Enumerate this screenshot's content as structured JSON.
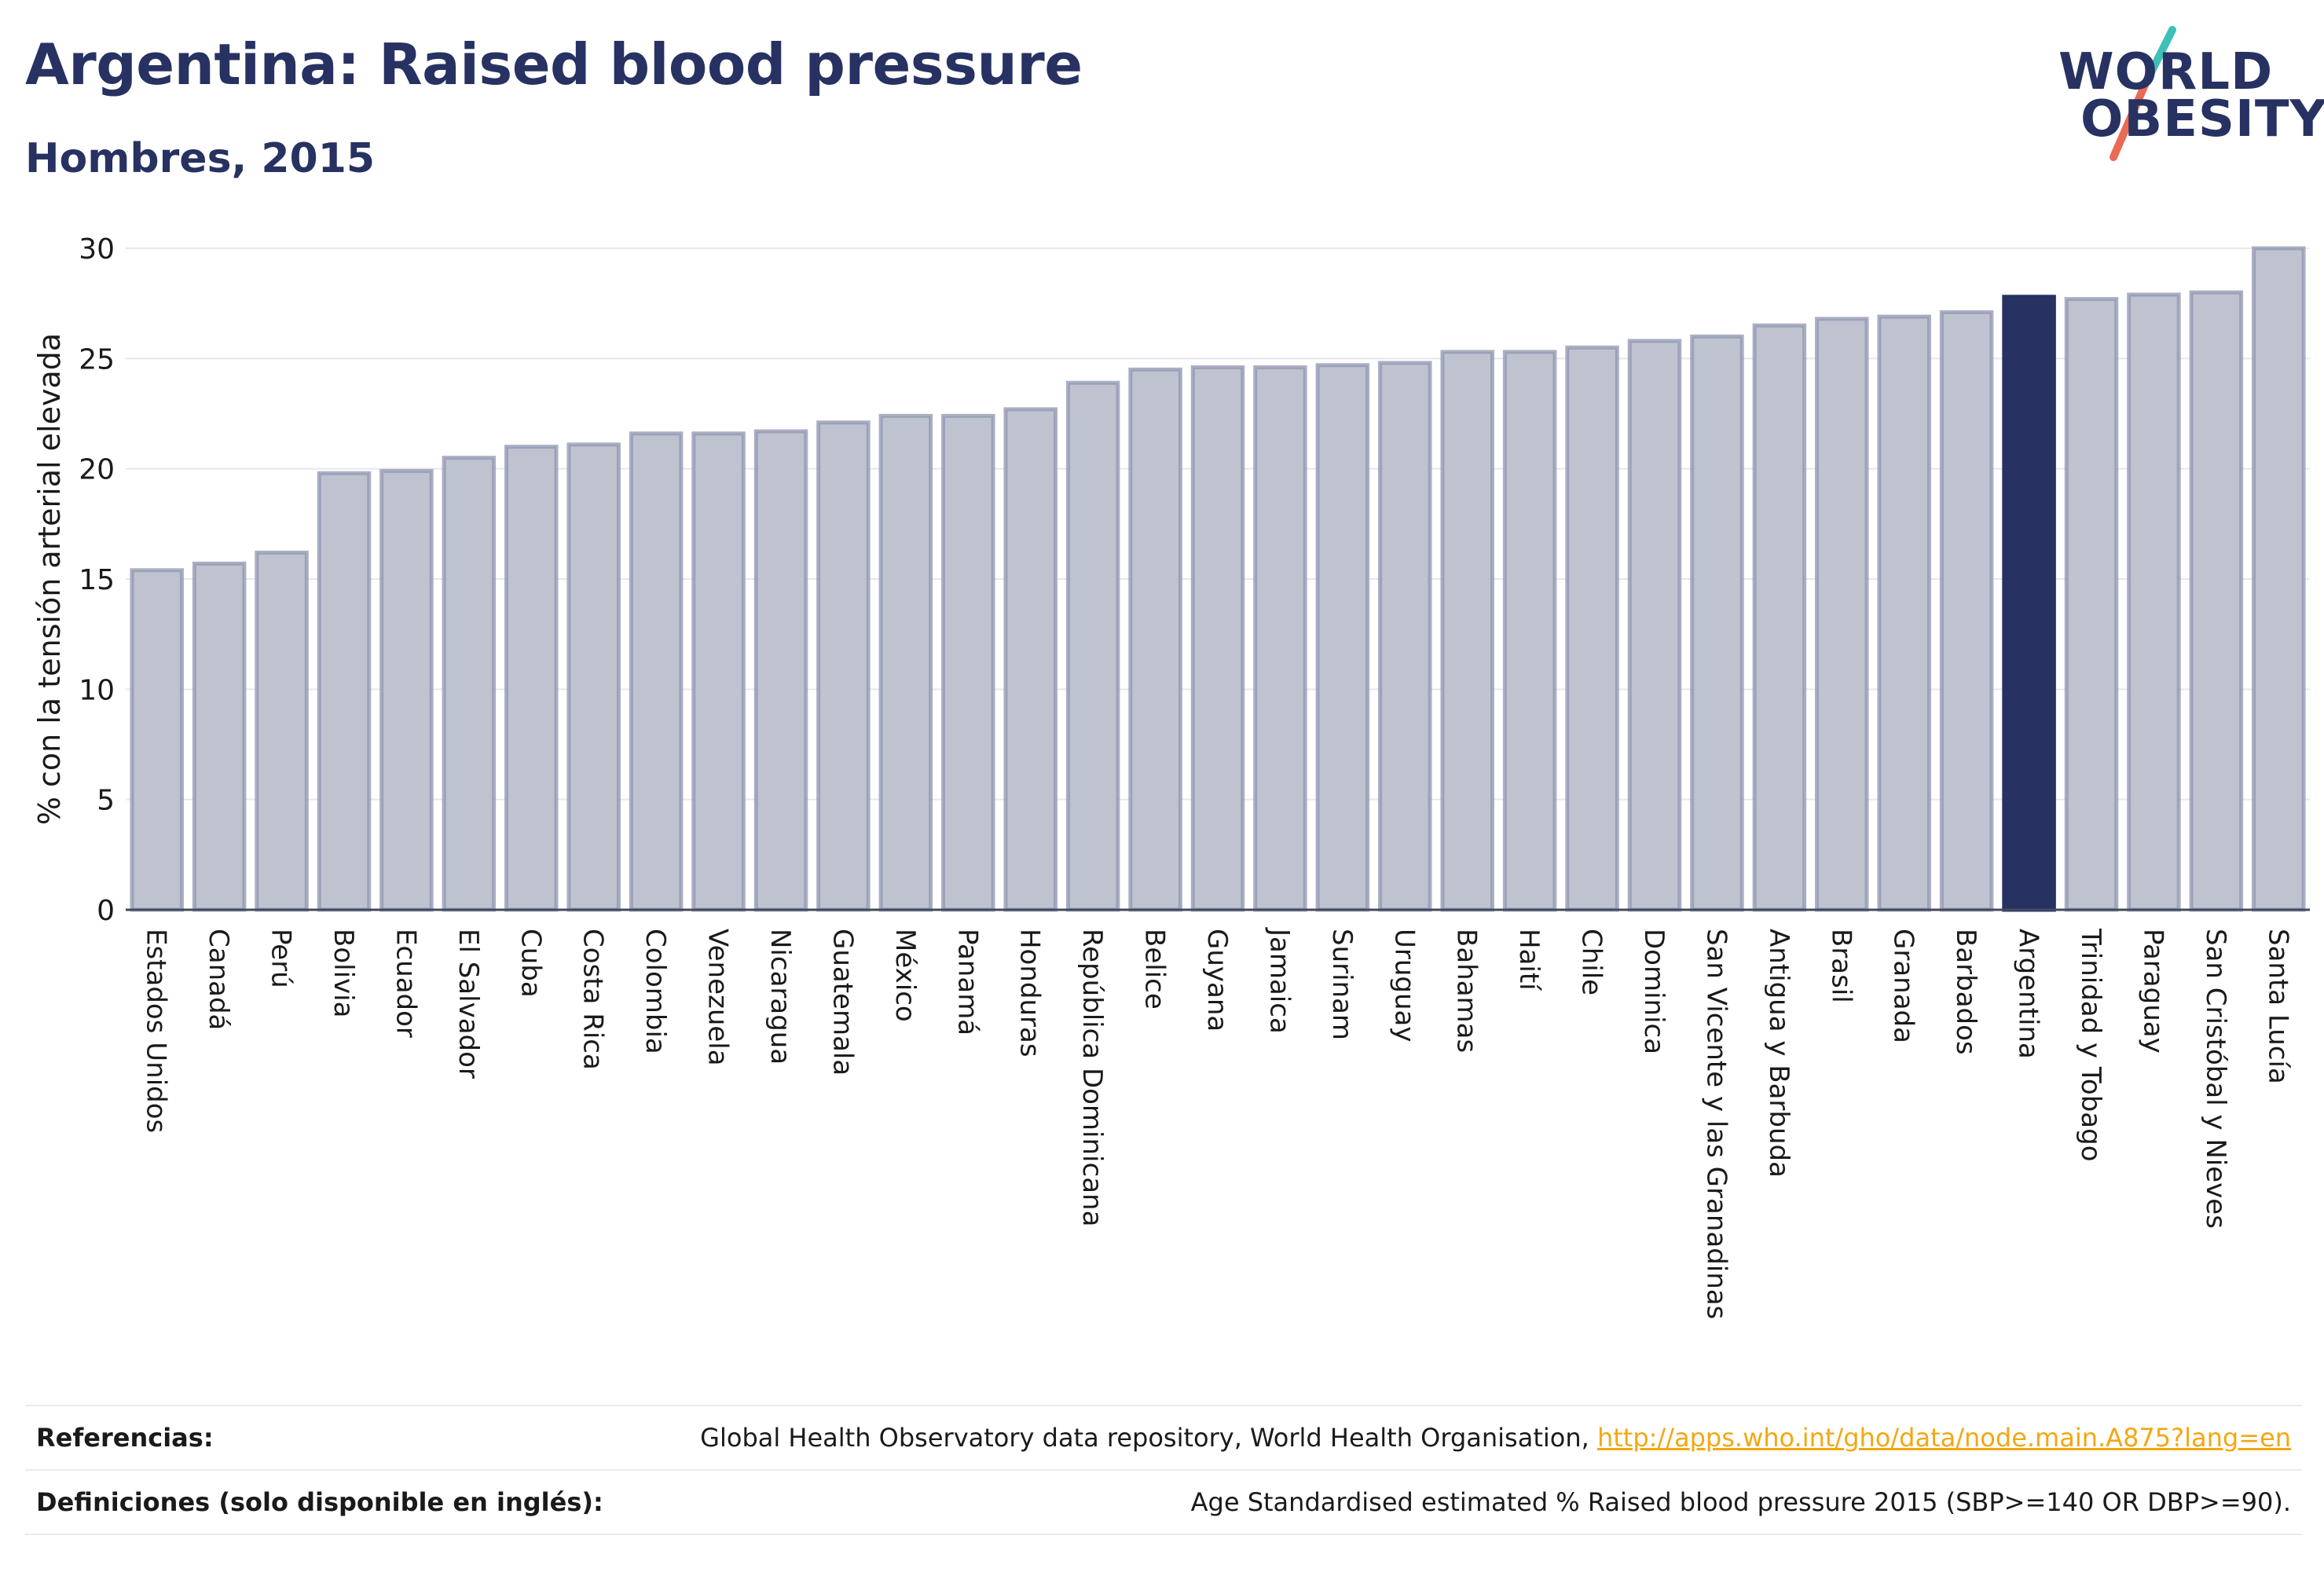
{
  "title": "Argentina: Raised blood pressure",
  "subtitle": "Hombres, 2015",
  "logo": {
    "line1": "WORLD",
    "line2": "OBESITY"
  },
  "colors": {
    "bar": "#bfc3d0",
    "bar_edge": "#8f96b0",
    "highlight": "#273262",
    "text": "#273262",
    "grid": "#e6e8ee"
  },
  "chart_data": {
    "type": "bar",
    "title": "Argentina: Raised blood pressure",
    "subtitle": "Hombres, 2015",
    "xlabel": "",
    "ylabel": "% con la tensión arterial elevada",
    "ylim": [
      0,
      30
    ],
    "yticks": [
      0,
      5,
      10,
      15,
      20,
      25,
      30
    ],
    "grid": true,
    "highlight": "Argentina",
    "categories": [
      "Estados Unidos",
      "Canadá",
      "Perú",
      "Bolivia",
      "Ecuador",
      "El Salvador",
      "Cuba",
      "Costa Rica",
      "Colombia",
      "Venezuela",
      "Nicaragua",
      "Guatemala",
      "México",
      "Panamá",
      "Honduras",
      "República Dominicana",
      "Belice",
      "Guyana",
      "Jamaica",
      "Surinam",
      "Uruguay",
      "Bahamas",
      "Haití",
      "Chile",
      "Dominica",
      "San Vicente y las Granadinas",
      "Antigua y Barbuda",
      "Brasil",
      "Granada",
      "Barbados",
      "Argentina",
      "Trinidad y Tobago",
      "Paraguay",
      "San Cristóbal y Nieves",
      "Santa Lucía"
    ],
    "values": [
      15.4,
      15.7,
      16.2,
      19.8,
      19.9,
      20.5,
      21.0,
      21.1,
      21.6,
      21.6,
      21.7,
      22.1,
      22.4,
      22.4,
      22.7,
      23.9,
      24.5,
      24.6,
      24.6,
      24.7,
      24.8,
      25.3,
      25.3,
      25.5,
      25.8,
      26.0,
      26.5,
      26.8,
      26.9,
      27.1,
      27.8,
      27.7,
      27.9,
      28.0,
      30.0
    ]
  },
  "footer": {
    "references_label": "Referencias:",
    "references_text": "Global Health Observatory data repository, World Health Organisation, ",
    "references_link": "http://apps.who.int/gho/data/node.main.A875?lang=en",
    "definitions_label": "Definiciones (solo disponible en inglés):",
    "definitions_text": "Age Standardised estimated % Raised blood pressure 2015 (SBP>=140 OR DBP>=90)."
  }
}
